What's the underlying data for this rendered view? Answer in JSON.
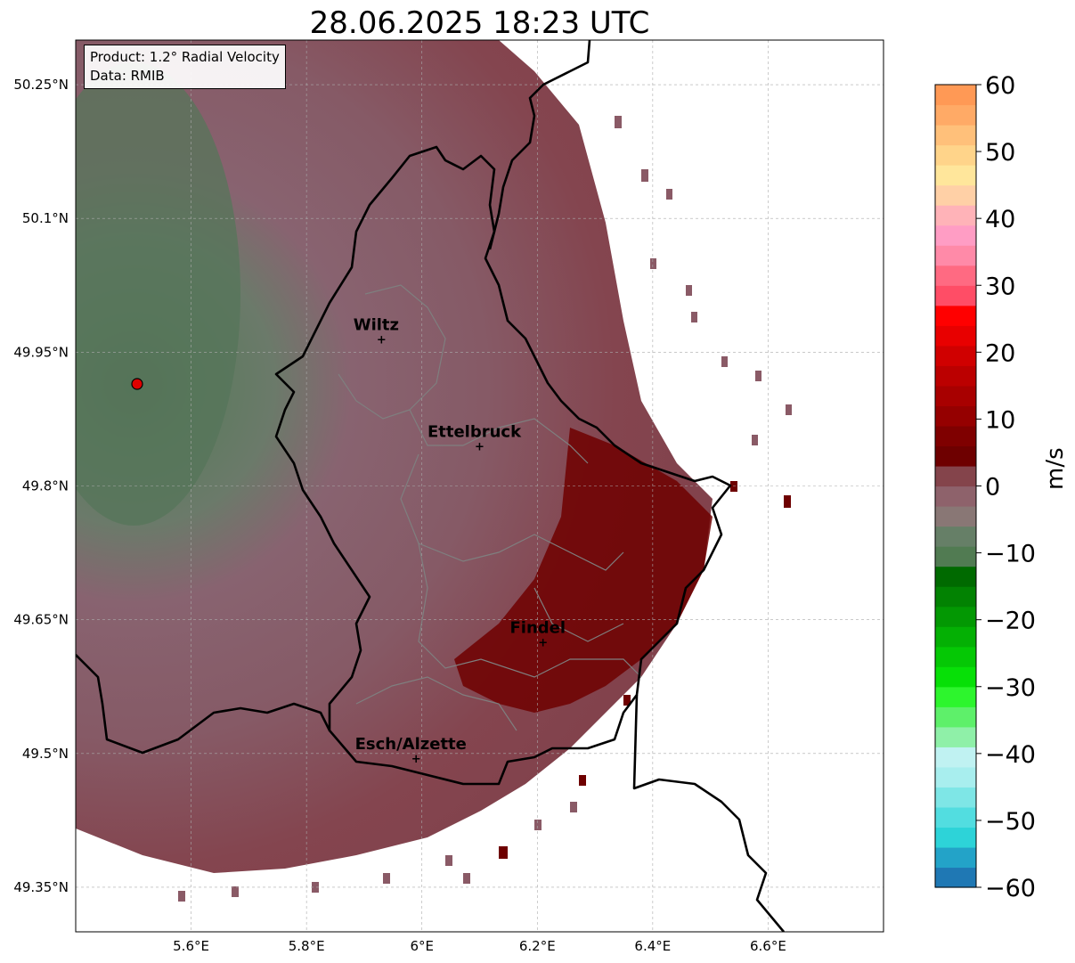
{
  "title": "28.06.2025 18:23 UTC",
  "info": {
    "product": "Product: 1.2° Radial Velocity",
    "data_source": "Data: RMIB"
  },
  "map_extent": {
    "lon": [
      5.4,
      6.8
    ],
    "lat": [
      49.3,
      50.3
    ]
  },
  "lat_ticks": [
    {
      "value": 50.25,
      "label": "50.25°N"
    },
    {
      "value": 50.1,
      "label": "50.1°N"
    },
    {
      "value": 49.95,
      "label": "49.95°N"
    },
    {
      "value": 49.8,
      "label": "49.8°N"
    },
    {
      "value": 49.65,
      "label": "49.65°N"
    },
    {
      "value": 49.5,
      "label": "49.5°N"
    },
    {
      "value": 49.35,
      "label": "49.35°N"
    }
  ],
  "lon_ticks": [
    {
      "value": 5.6,
      "label": "5.6°E"
    },
    {
      "value": 5.8,
      "label": "5.8°E"
    },
    {
      "value": 6.0,
      "label": "6°E"
    },
    {
      "value": 6.2,
      "label": "6.2°E"
    },
    {
      "value": 6.4,
      "label": "6.4°E"
    },
    {
      "value": 6.6,
      "label": "6.6°E"
    }
  ],
  "cities": [
    {
      "name": "Wiltz",
      "lon": 5.93,
      "lat": 49.965
    },
    {
      "name": "Ettelbruck",
      "lon": 6.1,
      "lat": 49.845
    },
    {
      "name": "Findel",
      "lon": 6.21,
      "lat": 49.625
    },
    {
      "name": "Esch/Alzette",
      "lon": 5.99,
      "lat": 49.495
    }
  ],
  "radar_site": {
    "lon": 5.505,
    "lat": 49.915
  },
  "colorbar": {
    "unit": "m/s",
    "min": -60,
    "max": 60,
    "ticks": [
      "60",
      "50",
      "40",
      "30",
      "20",
      "10",
      "0",
      "−10",
      "−20",
      "−30",
      "−40",
      "−50",
      "−60"
    ],
    "tick_values": [
      60,
      50,
      40,
      30,
      20,
      10,
      0,
      -10,
      -20,
      -30,
      -40,
      -50,
      -60
    ],
    "colors": [
      "#1f78b4",
      "#23a3c8",
      "#2dd3d8",
      "#52dde0",
      "#7ee6e6",
      "#a8eeee",
      "#c0f2f2",
      "#8ff0a8",
      "#5ef06a",
      "#2df52d",
      "#07e007",
      "#05c805",
      "#04b004",
      "#039803",
      "#028202",
      "#006a00",
      "#517b52",
      "#667f67",
      "#897775",
      "#8e626b",
      "#84444b",
      "#6e0000",
      "#7f0000",
      "#950000",
      "#a80000",
      "#bb0000",
      "#d00000",
      "#e80000",
      "#ff0000",
      "#ff4d66",
      "#ff6a82",
      "#ff8aa8",
      "#ff9dc4",
      "#ffb3b8",
      "#ffd0a6",
      "#ffe69b",
      "#ffd48a",
      "#ffc07a",
      "#ffaa66",
      "#ff9955"
    ]
  },
  "velocity_palette": {
    "background_far": "#886370",
    "background_mid": "#84454f",
    "near_radar": "#5f7a60",
    "strong_inbound": "#6e0000"
  }
}
